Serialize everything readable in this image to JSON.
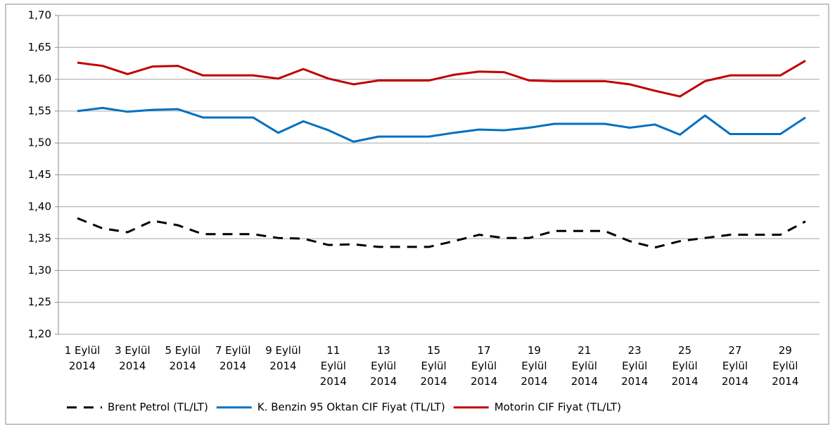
{
  "chart_data": {
    "type": "line",
    "categories": [
      "1 Eylül\n2014",
      null,
      "3 Eylül\n2014",
      null,
      "5 Eylül\n2014",
      null,
      "7 Eylül\n2014",
      null,
      "9 Eylül\n2014",
      null,
      "11\nEylül\n2014",
      null,
      "13\nEylül\n2014",
      null,
      "15\nEylül\n2014",
      null,
      "17\nEylül\n2014",
      null,
      "19\nEylül\n2014",
      null,
      "21\nEylül\n2014",
      null,
      "23\nEylül\n2014",
      null,
      "25\nEylül\n2014",
      null,
      "27\nEylül\n2014",
      null,
      "29\nEylül\n2014",
      null
    ],
    "series": [
      {
        "name": "Brent Petrol (TL/LT)",
        "color": "#000000",
        "dash": true,
        "values": [
          1.382,
          1.366,
          1.36,
          1.378,
          1.371,
          1.357,
          1.357,
          1.357,
          1.351,
          1.35,
          1.34,
          1.341,
          1.337,
          1.337,
          1.337,
          1.346,
          1.356,
          1.351,
          1.351,
          1.362,
          1.362,
          1.362,
          1.346,
          1.336,
          1.346,
          1.351,
          1.356,
          1.356,
          1.356,
          1.377
        ]
      },
      {
        "name": "K. Benzin 95 Oktan CIF Fiyat (TL/LT)",
        "color": "#0070c0",
        "dash": false,
        "values": [
          1.55,
          1.555,
          1.549,
          1.552,
          1.553,
          1.54,
          1.54,
          1.54,
          1.516,
          1.534,
          1.52,
          1.502,
          1.51,
          1.51,
          1.51,
          1.516,
          1.521,
          1.52,
          1.524,
          1.53,
          1.53,
          1.53,
          1.524,
          1.529,
          1.513,
          1.543,
          1.514,
          1.514,
          1.514,
          1.54
        ]
      },
      {
        "name": "Motorin CIF Fiyat (TL/LT)",
        "color": "#c00000",
        "dash": false,
        "values": [
          1.626,
          1.621,
          1.608,
          1.62,
          1.621,
          1.606,
          1.606,
          1.606,
          1.601,
          1.616,
          1.601,
          1.592,
          1.598,
          1.598,
          1.598,
          1.607,
          1.612,
          1.611,
          1.598,
          1.597,
          1.597,
          1.597,
          1.592,
          1.582,
          1.573,
          1.597,
          1.606,
          1.606,
          1.606,
          1.629
        ]
      }
    ],
    "ylim": [
      1.2,
      1.7
    ],
    "yticks": [
      {
        "value": 1.2,
        "label": "1,20"
      },
      {
        "value": 1.25,
        "label": "1,25"
      },
      {
        "value": 1.3,
        "label": "1,30"
      },
      {
        "value": 1.35,
        "label": "1,35"
      },
      {
        "value": 1.4,
        "label": "1,40"
      },
      {
        "value": 1.45,
        "label": "1,45"
      },
      {
        "value": 1.5,
        "label": "1,50"
      },
      {
        "value": 1.55,
        "label": "1,55"
      },
      {
        "value": 1.6,
        "label": "1,60"
      },
      {
        "value": 1.65,
        "label": "1,65"
      },
      {
        "value": 1.7,
        "label": "1,70"
      }
    ],
    "grid": true,
    "legend": "bottom"
  }
}
